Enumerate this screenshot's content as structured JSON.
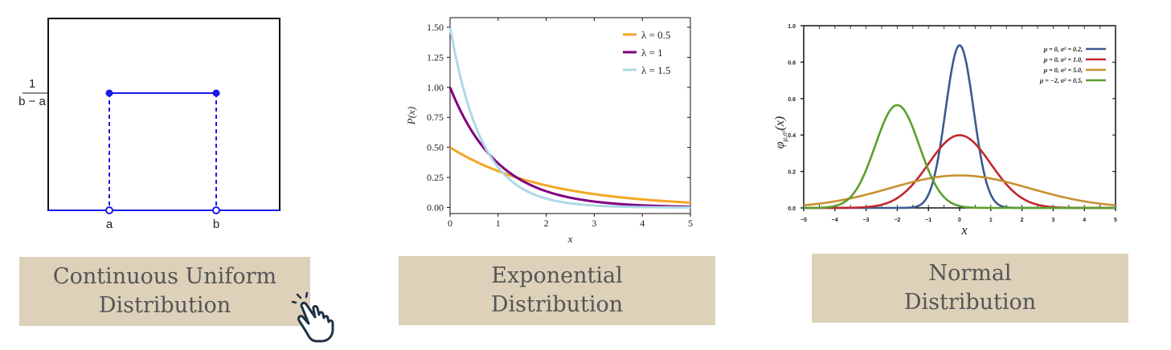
{
  "cards": [
    {
      "line1": "Continuous Uniform",
      "line2": "Distribution"
    },
    {
      "line1": "Exponential",
      "line2": "Distribution"
    },
    {
      "line1": "Normal",
      "line2": "Distribution"
    }
  ],
  "icons": {
    "pointer": "hand-pointer-icon"
  },
  "chart_data": [
    {
      "type": "line",
      "chart": "uniform",
      "xticks": [
        "a",
        "b"
      ],
      "ytick_num": "1",
      "ytick_den": "b − a",
      "series": [
        {
          "x": [
            0,
            1
          ],
          "y": [
            1,
            1
          ],
          "color": "#1a1ae6"
        }
      ],
      "support_outside": {
        "y": 0,
        "color": "#1a1ae6"
      },
      "color": "#1a1ae6"
    },
    {
      "type": "line",
      "chart": "exponential",
      "xlabel": "x",
      "ylabel": "P(x)",
      "xlim": [
        0,
        5
      ],
      "ylim": [
        -0.05,
        1.58
      ],
      "xticks": [
        "0",
        "1",
        "2",
        "3",
        "4",
        "5"
      ],
      "yticks": [
        "0.00",
        "0.25",
        "0.50",
        "0.75",
        "1.00",
        "1.25",
        "1.50"
      ],
      "legend_position": "top-right",
      "series": [
        {
          "name": "λ = 0.5",
          "lambda": 0.5,
          "color": "#f5a623"
        },
        {
          "name": "λ = 1",
          "lambda": 1.0,
          "color": "#800080"
        },
        {
          "name": "λ = 1.5",
          "lambda": 1.5,
          "color": "#add8e6"
        }
      ]
    },
    {
      "type": "line",
      "chart": "normal",
      "xlabel": "x",
      "ylabel_main": "φ",
      "ylabel_sub": "μ,σ²",
      "ylabel_tail": "(x)",
      "xlim": [
        -5,
        5
      ],
      "ylim": [
        0,
        1.0
      ],
      "xticks": [
        "−5",
        "−4",
        "−3",
        "−2",
        "−1",
        "0",
        "1",
        "2",
        "3",
        "4",
        "5"
      ],
      "yticks": [
        "0.0",
        "0.2",
        "0.4",
        "0.6",
        "0.8",
        "1.0"
      ],
      "legend_position": "top-right",
      "series": [
        {
          "name": "μ = 0,   σ² = 0.2,",
          "mu": 0,
          "var": 0.2,
          "color": "#3a5a8c"
        },
        {
          "name": "μ = 0,   σ² = 1.0,",
          "mu": 0,
          "var": 1.0,
          "color": "#c0282d"
        },
        {
          "name": "μ = 0,   σ² = 5.0,",
          "mu": 0,
          "var": 5.0,
          "color": "#c8902f"
        },
        {
          "name": "μ = −2,  σ² = 0.5,",
          "mu": -2,
          "var": 0.5,
          "color": "#5aa02c"
        }
      ]
    }
  ]
}
